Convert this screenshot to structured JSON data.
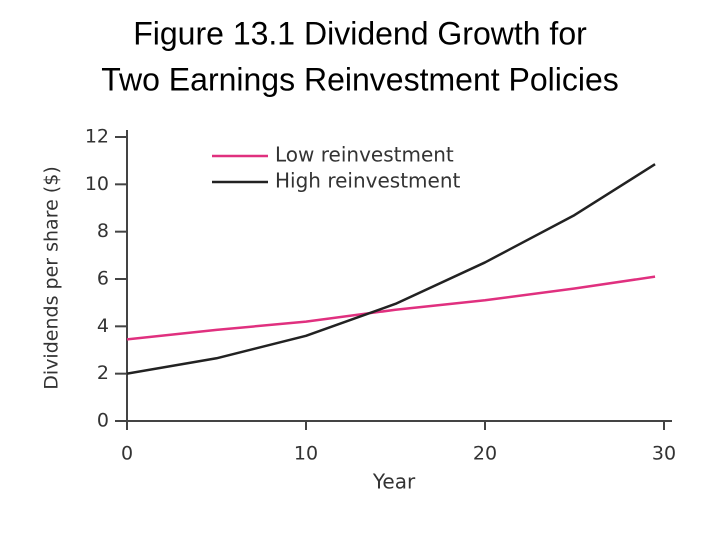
{
  "chart_data": {
    "type": "line",
    "title": [
      "Figure 13.1 Dividend Growth for",
      "Two Earnings Reinvestment Policies"
    ],
    "x_label": "Year",
    "y_label": "Dividends per share ($)",
    "x": [
      0,
      5,
      10,
      15,
      20,
      25,
      29.5
    ],
    "series": [
      {
        "name": "Low reinvestment",
        "color": "#e0307f",
        "values": [
          3.45,
          3.85,
          4.2,
          4.7,
          5.1,
          5.6,
          6.1
        ]
      },
      {
        "name": "High reinvestment",
        "color": "#222222",
        "values": [
          2.0,
          2.65,
          3.6,
          4.95,
          6.7,
          8.7,
          10.85
        ]
      }
    ],
    "xlim": [
      0,
      30
    ],
    "xticks": [
      0,
      10,
      20,
      30
    ],
    "ylim": [
      0,
      12
    ],
    "yticks": [
      0,
      2,
      4,
      6,
      8,
      10,
      12
    ]
  }
}
